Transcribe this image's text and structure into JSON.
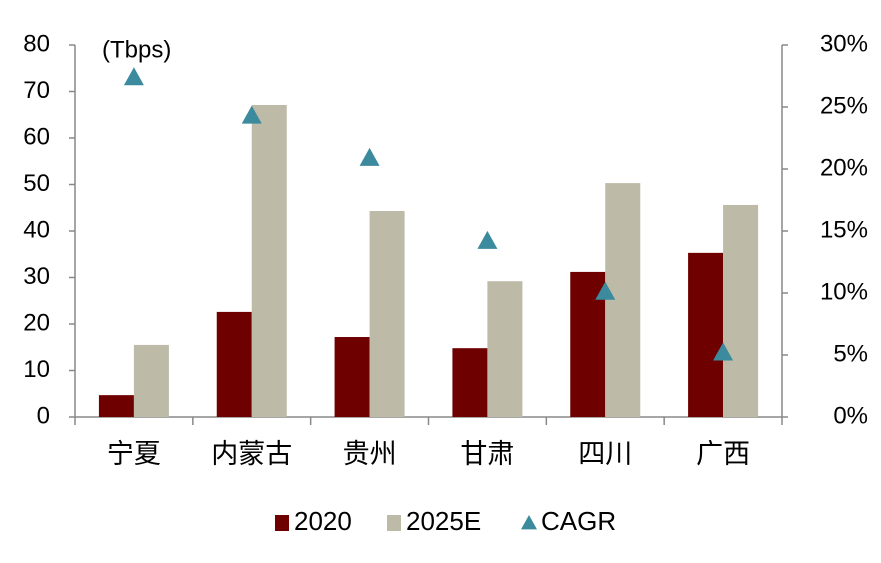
{
  "chart_data": {
    "type": "bar",
    "annotation": "(Tbps)",
    "categories": [
      "宁夏",
      "内蒙古",
      "贵州",
      "甘肃",
      "四川",
      "广西"
    ],
    "series": [
      {
        "name": "2020",
        "color": "#6e0000",
        "values": [
          4.7,
          22.6,
          17.2,
          14.8,
          31.2,
          35.3
        ]
      },
      {
        "name": "2025E",
        "color": "#bdbaa8",
        "values": [
          15.5,
          67.1,
          44.3,
          29.2,
          50.3,
          45.6
        ]
      },
      {
        "name": "CAGR",
        "color": "#3b8a9e",
        "axis": "y2",
        "marker": "triangle",
        "values": [
          27.4,
          24.3,
          20.9,
          14.2,
          10.1,
          5.2
        ]
      }
    ],
    "ylim": [
      0,
      80
    ],
    "yticks": [
      0,
      10,
      20,
      30,
      40,
      50,
      60,
      70,
      80
    ],
    "y2lim": [
      0,
      30
    ],
    "y2ticks": [
      {
        "value": 0,
        "label": "0%"
      },
      {
        "value": 5,
        "label": "5%"
      },
      {
        "value": 10,
        "label": "10%"
      },
      {
        "value": 15,
        "label": "15%"
      },
      {
        "value": 20,
        "label": "20%"
      },
      {
        "value": 25,
        "label": "25%"
      },
      {
        "value": 30,
        "label": "30%"
      }
    ],
    "grid": false,
    "legend": "bottom"
  }
}
